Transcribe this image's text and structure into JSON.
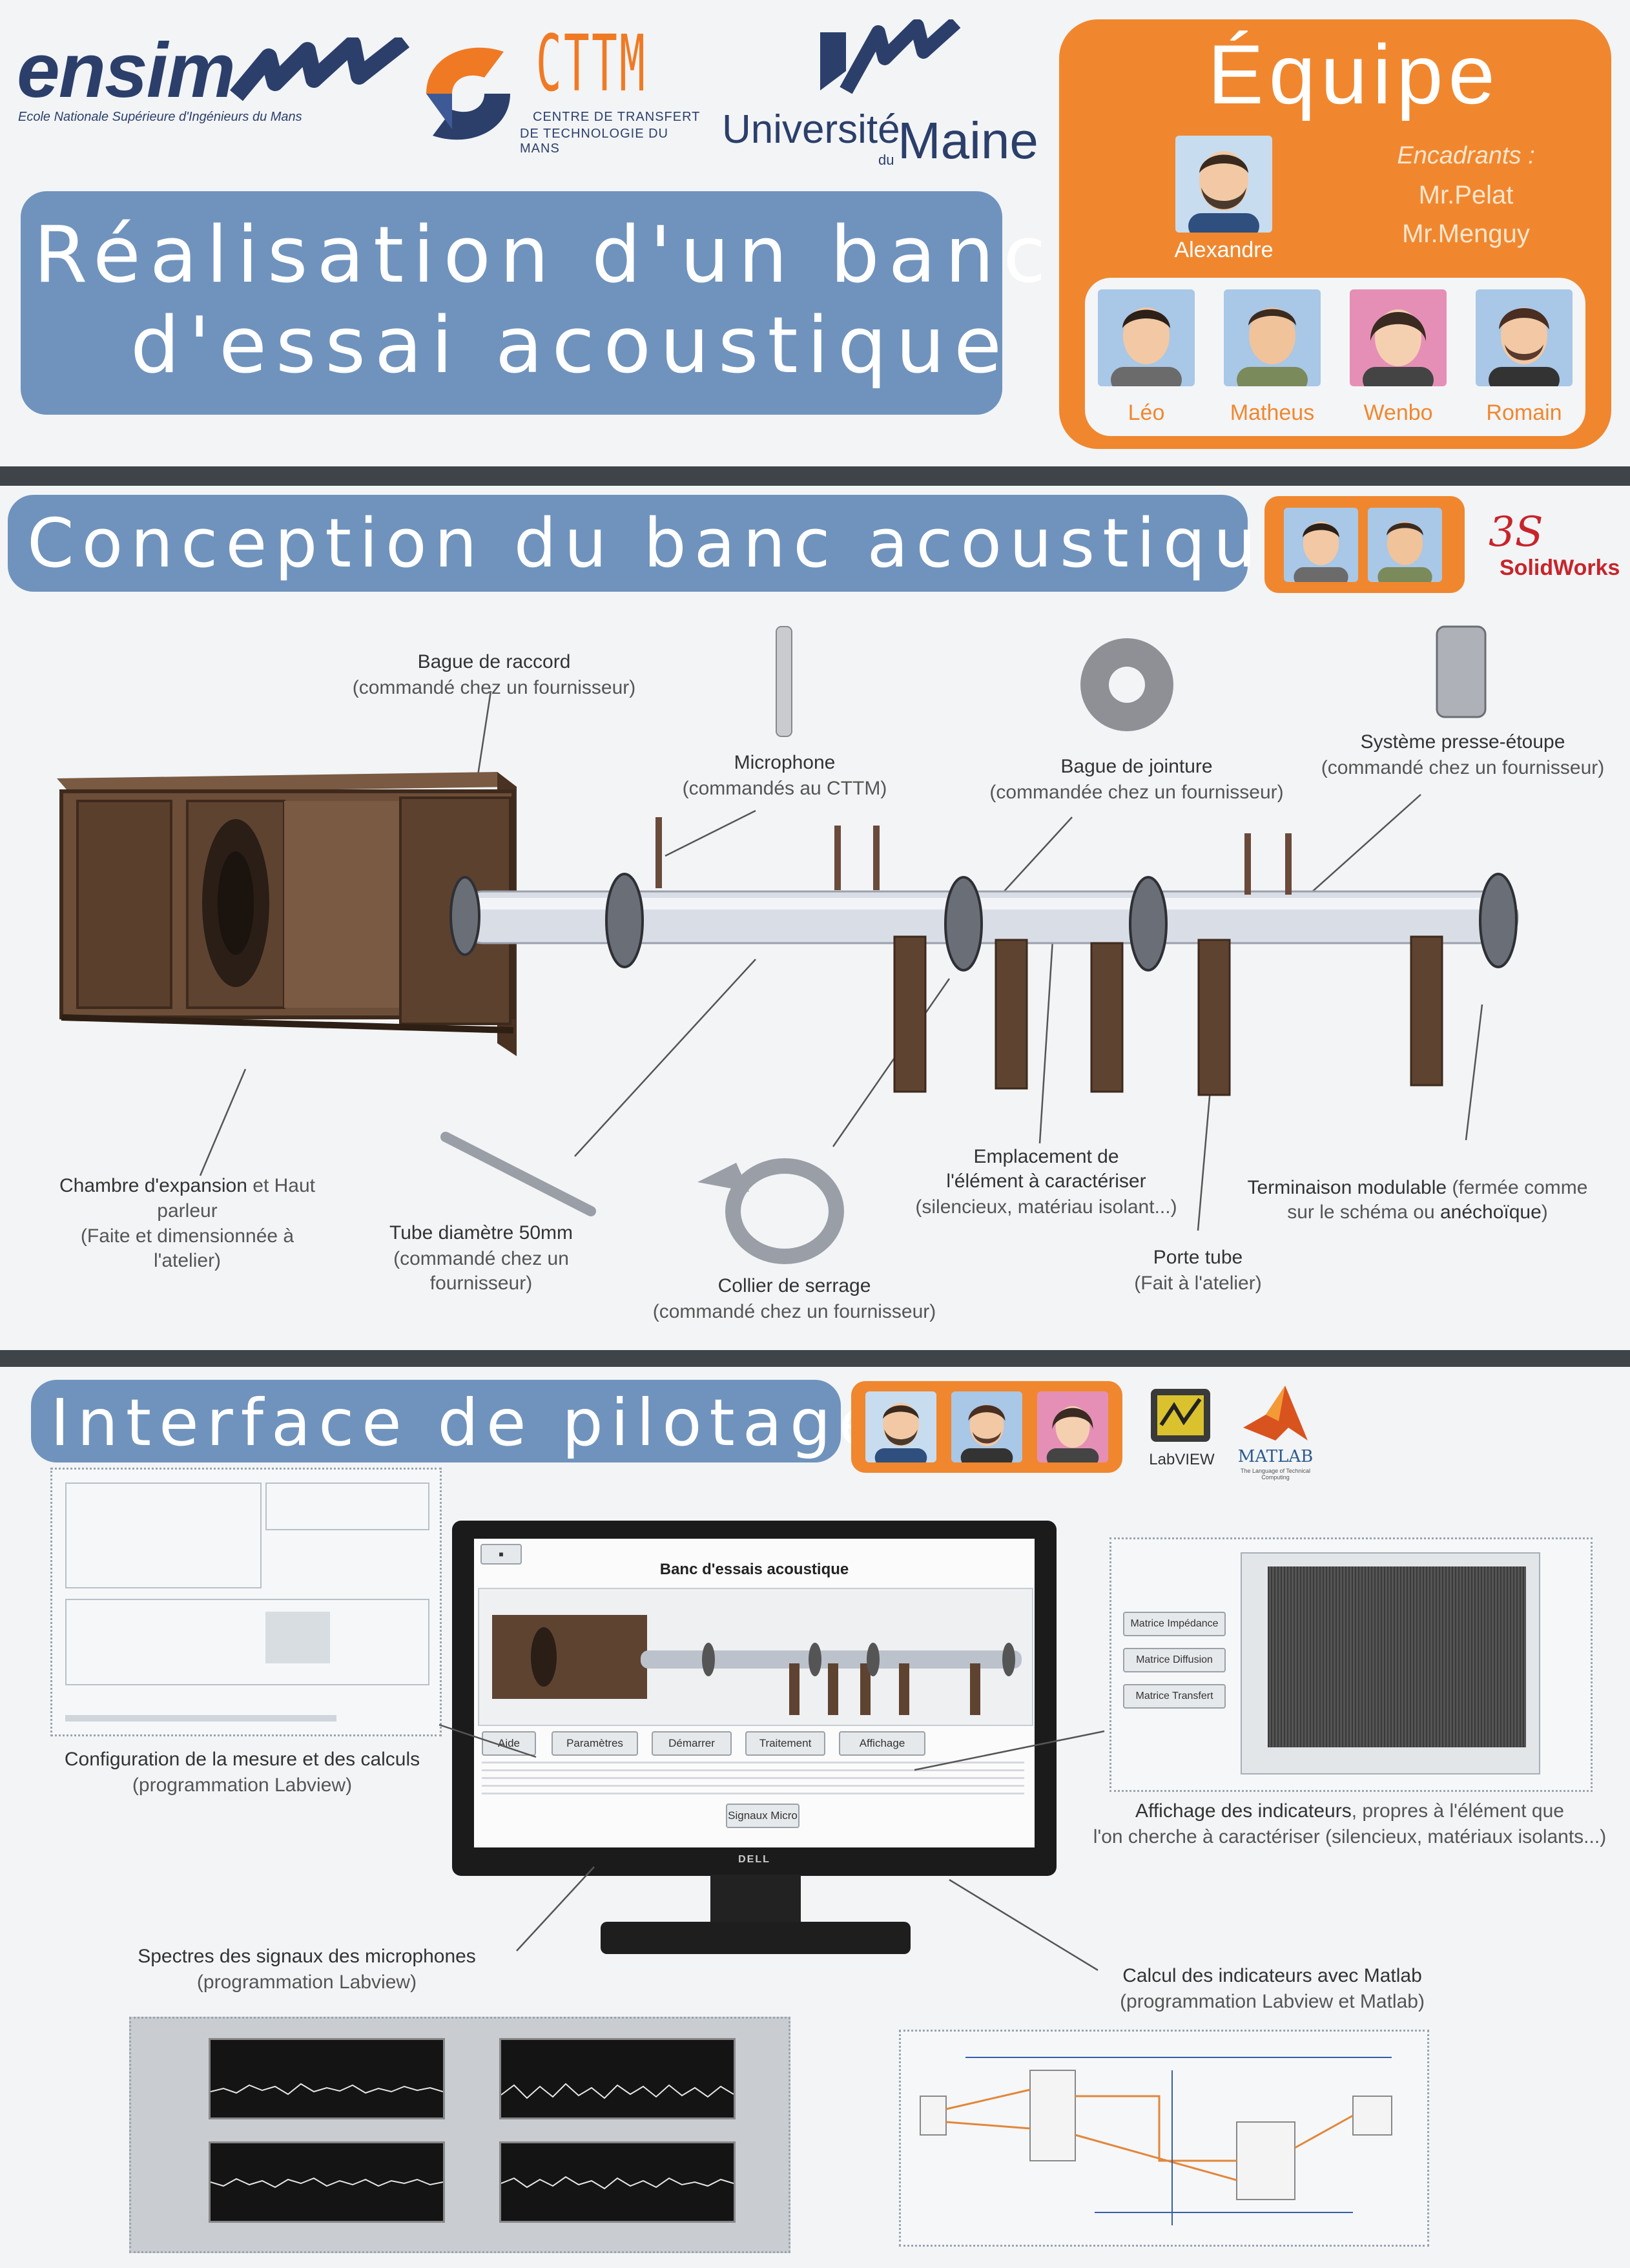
{
  "header": {
    "ensim_logo": "ensim",
    "ensim_subtitle": "Ecole Nationale Supérieure d'Ingénieurs du Mans",
    "cttm_logo": "CTTM",
    "cttm_subtitle_1": "CENTRE DE TRANSFERT",
    "cttm_subtitle_2": "DE TECHNOLOGIE DU MANS",
    "univ_logo_1": "Université",
    "univ_logo_du": "du",
    "univ_logo_2": "Maine",
    "title_line1": "Réalisation d'un banc",
    "title_line2": "d'essai acoustique"
  },
  "team": {
    "title": "Équipe",
    "leader": "Alexandre",
    "encadrants_label": "Encadrants :",
    "encadrant_1": "Mr.Pelat",
    "encadrant_2": "Mr.Menguy",
    "members": [
      "Léo",
      "Matheus",
      "Wenbo",
      "Romain"
    ]
  },
  "section1": {
    "title": "Conception du banc acoustique",
    "software": "SolidWorks",
    "labels": {
      "bague_raccord": "Bague de raccord",
      "bague_raccord_sub": "(commandé chez un fournisseur)",
      "microphone": "Microphone",
      "microphone_sub": "(commandés au CTTM)",
      "bague_jointure": "Bague de jointure",
      "bague_jointure_sub": "(commandée chez un fournisseur)",
      "presse": "Système presse-étoupe",
      "presse_sub": "(commandé chez un fournisseur)",
      "chambre_a": "Chambre d'expansion",
      "chambre_b": " et Haut",
      "chambre_c": "parleur",
      "chambre_sub": "(Faite et dimensionnée à l'atelier)",
      "tube": "Tube diamètre 50mm",
      "tube_sub": "(commandé chez un fournisseur)",
      "collier": "Collier de serrage",
      "collier_sub": "(commandé chez un fournisseur)",
      "emplacement_1": "Emplacement de",
      "emplacement_2": "l'élément à caractériser",
      "emplacement_sub": "(silencieux, matériau isolant...)",
      "porte": "Porte tube",
      "porte_sub": "(Fait à l'atelier)",
      "terminaison_a": "Terminaison modulable",
      "terminaison_b": " (fermée comme",
      "terminaison_c": "sur le schéma ou ",
      "terminaison_d": "anéchoïque",
      "terminaison_e": ")"
    }
  },
  "section2": {
    "title": "Interface de pilotage",
    "software_1": "LabVIEW",
    "software_2": "MATLAB",
    "software_2_tag": "The Language of Technical Computing",
    "config_label": "Configuration de la mesure et des calculs",
    "config_sub": "(programmation Labview)",
    "monitor_title": "Banc d'essais acoustique",
    "monitor_brand": "DELL",
    "monitor_buttons": [
      "Aide",
      "Paramètres",
      "Démarrer",
      "Traitement",
      "Affichage"
    ],
    "monitor_signal": "Signaux Micro",
    "indicators_buttons": [
      "Matrice Impédance",
      "Matrice Diffusion",
      "Matrice Transfert"
    ],
    "affichage_a": "Affichage des indicateurs",
    "affichage_b": ", propres à l'élément que",
    "affichage_c": "l'on cherche à caractériser (silencieux, matériaux isolants...)",
    "spectres": "Spectres des signaux des microphones",
    "spectres_sub": "(programmation Labview)",
    "calcul": "Calcul des indicateurs avec Matlab",
    "calcul_sub": "(programmation Labview et Matlab)"
  },
  "colors": {
    "title_blue": "#6f93bd",
    "team_orange": "#f0872e",
    "divider": "#3f4449",
    "wood": "#5e4331",
    "tube": "#d9dde6"
  }
}
